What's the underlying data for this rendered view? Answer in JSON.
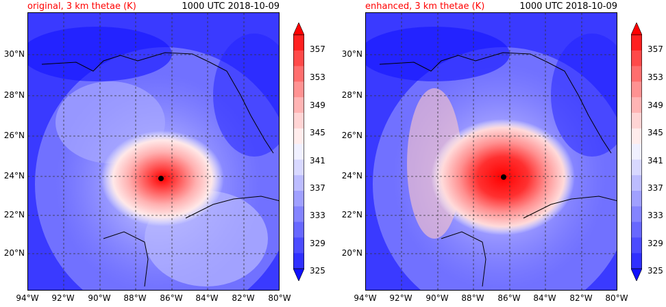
{
  "panels": [
    {
      "title": "original, 3 km thetae (K)",
      "time": "1000 UTC 2018-10-09",
      "center_marker": "storm-center",
      "intensity": "moderate"
    },
    {
      "title": "enhanced, 3 km thetae (K)",
      "time": "1000 UTC 2018-10-09",
      "center_marker": "storm-center",
      "intensity": "strong"
    }
  ],
  "lat_labels": [
    "30°N",
    "28°N",
    "26°N",
    "24°N",
    "22°N",
    "20°N"
  ],
  "lon_labels": [
    "94°W",
    "92°W",
    "90°W",
    "88°W",
    "86°W",
    "84°W",
    "82°W",
    "80°W"
  ],
  "colorbar": {
    "labels": [
      "357",
      "353",
      "349",
      "345",
      "341",
      "337",
      "333",
      "329",
      "325"
    ],
    "colors": [
      "#ff0000",
      "#ff2020",
      "#ff4a4a",
      "#ff6e6e",
      "#ff9292",
      "#ffb4b4",
      "#ffd4d4",
      "#ffecec",
      "#f0f0ff",
      "#d8d8ff",
      "#bcbcff",
      "#a0a0ff",
      "#8484ff",
      "#6868ff",
      "#4c4cff",
      "#3030ff",
      "#1010ff"
    ]
  }
}
